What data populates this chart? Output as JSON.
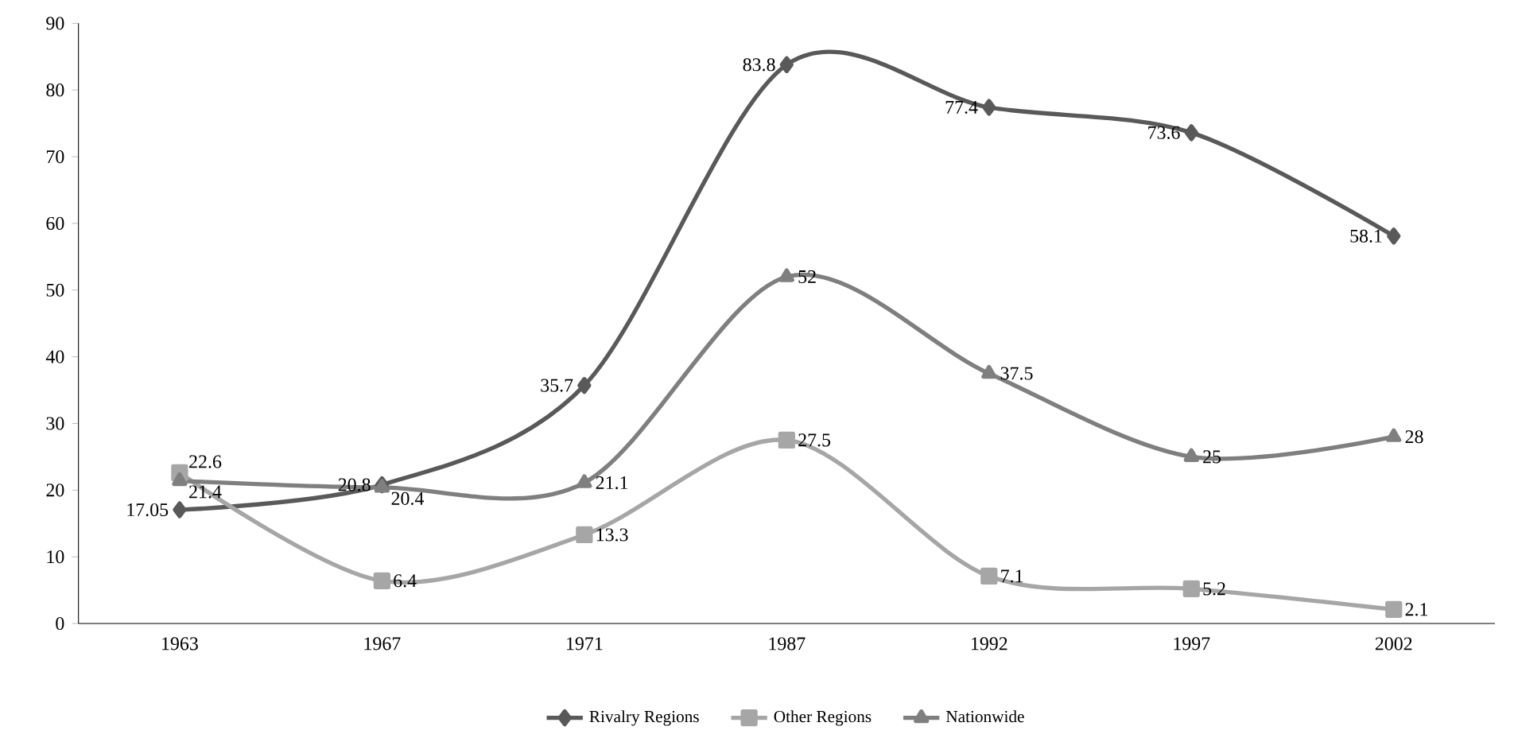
{
  "chart_data": {
    "type": "line",
    "categories": [
      "1963",
      "1967",
      "1971",
      "1987",
      "1992",
      "1997",
      "2002"
    ],
    "series": [
      {
        "name": "Rivalry Regions",
        "color": "#595959",
        "marker": "diamond",
        "values": [
          17.05,
          20.8,
          35.7,
          83.8,
          77.4,
          73.6,
          58.1
        ]
      },
      {
        "name": "Other Regions",
        "color": "#a6a6a6",
        "marker": "square",
        "values": [
          22.6,
          6.4,
          13.3,
          27.5,
          7.1,
          5.2,
          2.1
        ]
      },
      {
        "name": "Nationwide",
        "color": "#7f7f7f",
        "marker": "triangle",
        "values": [
          21.4,
          20.4,
          21.1,
          52,
          37.5,
          25,
          28
        ]
      }
    ],
    "ylim": [
      0,
      90
    ],
    "yticks": [
      0,
      10,
      20,
      30,
      40,
      50,
      60,
      70,
      80,
      90
    ],
    "grid": false,
    "legend": "bottom",
    "data_labels": true,
    "line_style": "solid"
  }
}
